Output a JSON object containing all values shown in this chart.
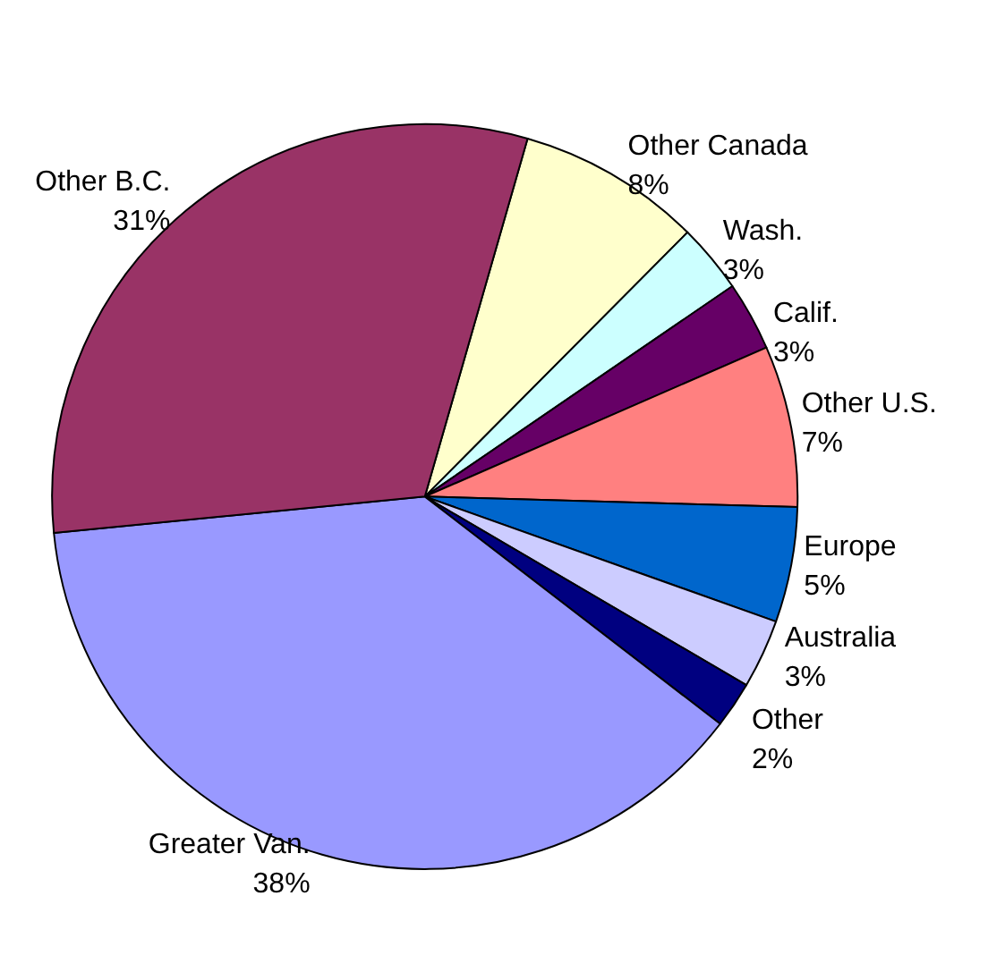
{
  "chart_data": {
    "type": "pie",
    "categories": [
      "Other Canada",
      "Wash.",
      "Calif.",
      "Other U.S.",
      "Europe",
      "Australia",
      "Other",
      "Greater Van.",
      "Other B.C."
    ],
    "values": [
      8,
      3,
      3,
      7,
      5,
      3,
      2,
      38,
      31
    ],
    "colors": [
      "#ffffcc",
      "#ccffff",
      "#660066",
      "#ff8080",
      "#0066cc",
      "#ccccff",
      "#000080",
      "#9999ff",
      "#993366"
    ],
    "value_labels": [
      "8%",
      "3%",
      "3%",
      "7%",
      "5%",
      "3%",
      "2%",
      "38%",
      "31%"
    ]
  }
}
